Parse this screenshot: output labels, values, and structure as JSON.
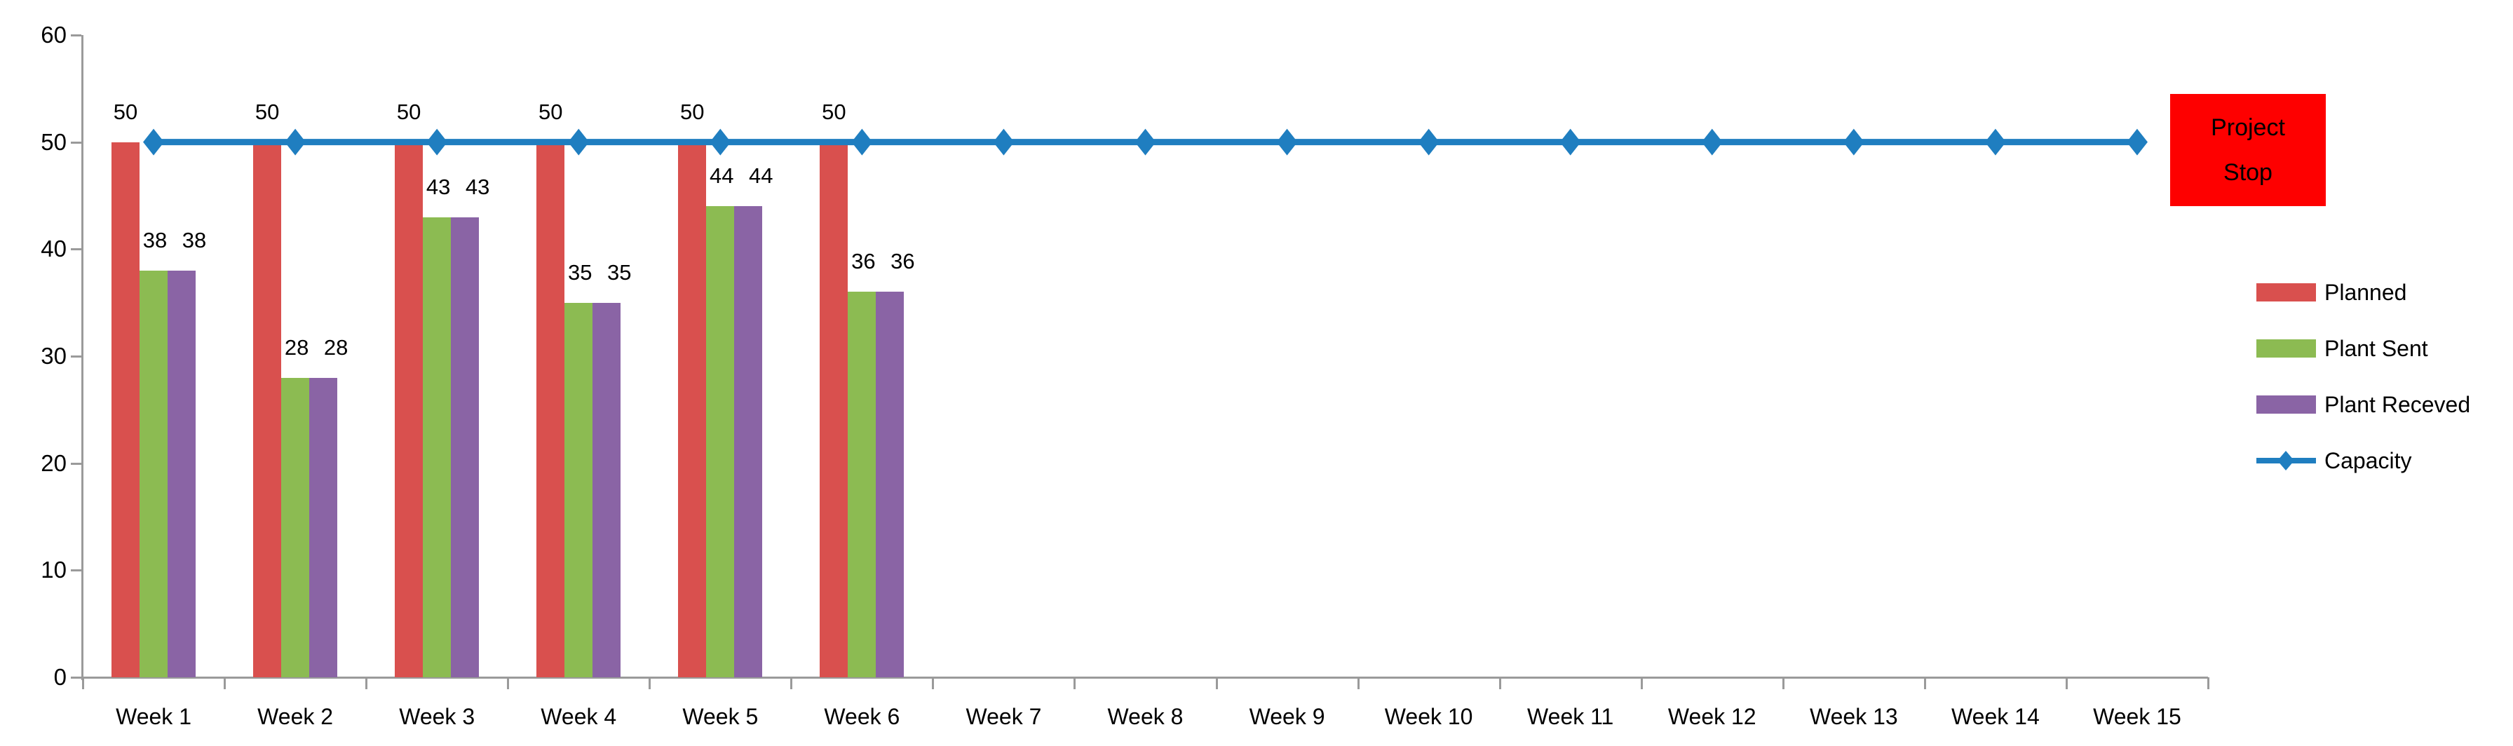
{
  "chart_data": {
    "type": "bar",
    "subtype": "grouped-bars-with-line-overlay",
    "title": "",
    "xlabel": "",
    "ylabel": "",
    "ylim": [
      0,
      60
    ],
    "yticks": [
      0,
      10,
      20,
      30,
      40,
      50,
      60
    ],
    "grid": false,
    "legend_position": "right",
    "categories": [
      "Week 1",
      "Week 2",
      "Week 3",
      "Week 4",
      "Week 5",
      "Week 6",
      "Week 7",
      "Week 8",
      "Week 9",
      "Week 10",
      "Week 11",
      "Week 12",
      "Week 13",
      "Week 14",
      "Week 15"
    ],
    "series": [
      {
        "name": "Planned",
        "kind": "bar",
        "color": "#D9504E",
        "data_labels": true,
        "label_offset_x": 0,
        "values": [
          50,
          50,
          50,
          50,
          50,
          50,
          null,
          null,
          null,
          null,
          null,
          null,
          null,
          null,
          null
        ]
      },
      {
        "name": "Plant Sent",
        "kind": "bar",
        "color": "#8CBB52",
        "data_labels": true,
        "label_offset_x": 2,
        "values": [
          38,
          28,
          43,
          35,
          44,
          36,
          null,
          null,
          null,
          null,
          null,
          null,
          null,
          null,
          null
        ]
      },
      {
        "name": "Plant Receved",
        "kind": "bar",
        "color": "#8A64A5",
        "data_labels": true,
        "label_offset_x": 18,
        "values": [
          38,
          28,
          43,
          35,
          44,
          36,
          null,
          null,
          null,
          null,
          null,
          null,
          null,
          null,
          null
        ]
      },
      {
        "name": "Capacity",
        "kind": "line",
        "color": "#1F7EC0",
        "marker": "diamond",
        "data_labels": false,
        "values": [
          50,
          50,
          50,
          50,
          50,
          50,
          50,
          50,
          50,
          50,
          50,
          50,
          50,
          50,
          50
        ]
      }
    ]
  },
  "annotation": {
    "label": "Project Stop",
    "bg_color": "#FE0000"
  },
  "axis_color": "#9A9A9A"
}
